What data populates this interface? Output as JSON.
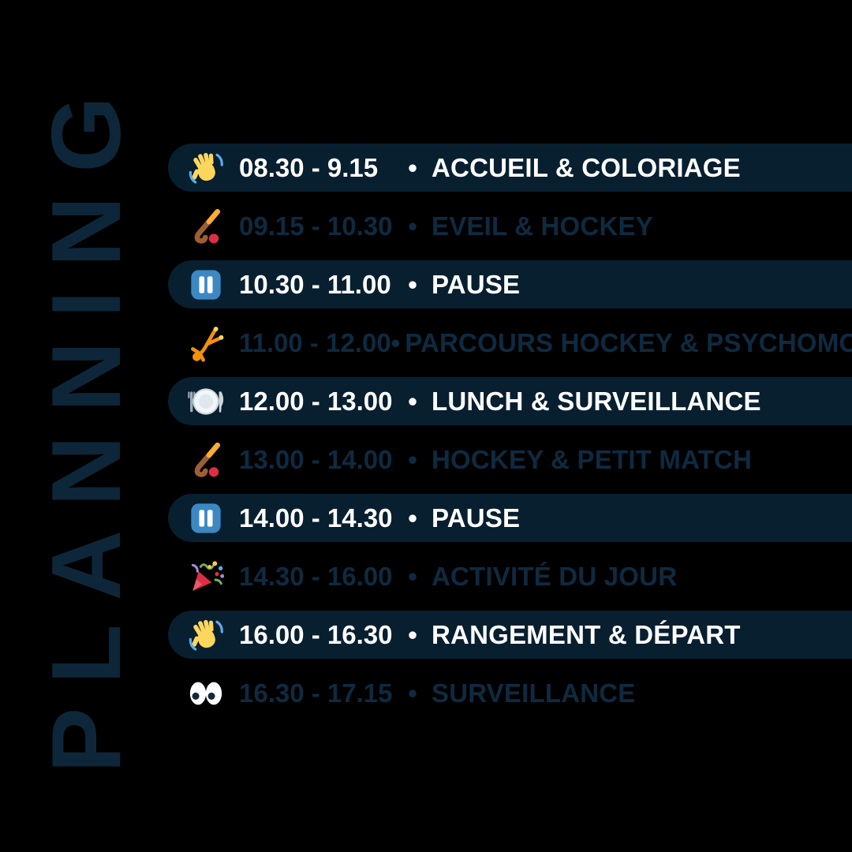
{
  "title": "PLANNING",
  "bullet": "•",
  "colors": {
    "background": "#000000",
    "pill": "#081F30",
    "ink": "#0F2A40",
    "title-ink": "#0E2639",
    "text-light": "#FFFFFF",
    "pause-blue": "#3B88C3",
    "hockey-amber": "#FFAC33",
    "hockey-brown": "#9C5F33",
    "ball-red": "#DD2E44",
    "hand-yellow": "#FFD65C",
    "motion-blue": "#5DADEC",
    "cartwheel-orange": "#F4900C",
    "party-red": "#DD2E44"
  },
  "rows": [
    {
      "icon": "wave-icon",
      "time": "08.30 - 9.15",
      "activity": "ACCUEIL & COLORIAGE",
      "highlighted": true
    },
    {
      "icon": "hockey-icon",
      "time": "09.15 - 10.30",
      "activity": "EVEIL & HOCKEY",
      "highlighted": false
    },
    {
      "icon": "pause-icon",
      "time": "10.30 - 11.00",
      "activity": "PAUSE",
      "highlighted": true
    },
    {
      "icon": "cartwheel-icon",
      "time": "11.00 - 12.00",
      "activity": "PARCOURS HOCKEY & PSYCHOMOT",
      "highlighted": false
    },
    {
      "icon": "plate-icon",
      "time": "12.00 - 13.00",
      "activity": "LUNCH & SURVEILLANCE",
      "highlighted": true
    },
    {
      "icon": "hockey-icon",
      "time": "13.00 - 14.00",
      "activity": "HOCKEY & PETIT MATCH",
      "highlighted": false
    },
    {
      "icon": "pause-icon",
      "time": "14.00 - 14.30",
      "activity": "PAUSE",
      "highlighted": true
    },
    {
      "icon": "party-icon",
      "time": "14.30 - 16.00",
      "activity": "ACTIVITÉ DU JOUR",
      "highlighted": false
    },
    {
      "icon": "wave-icon",
      "time": "16.00 - 16.30",
      "activity": "RANGEMENT & DÉPART",
      "highlighted": true
    },
    {
      "icon": "eyes-icon",
      "time": "16.30 - 17.15",
      "activity": "SURVEILLANCE",
      "highlighted": false
    }
  ]
}
